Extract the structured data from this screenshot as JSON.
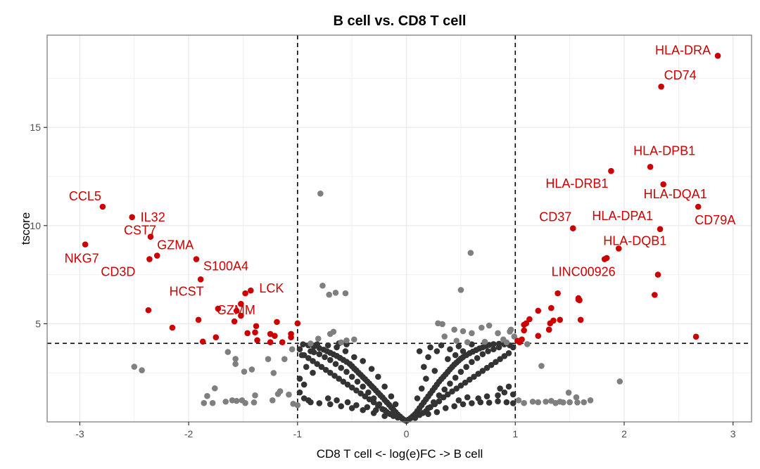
{
  "chart_data": {
    "type": "scatter",
    "title": "B cell vs. CD8 T cell",
    "xlabel": "CD8 T cell <- log(e)FC -> B cell",
    "ylabel": "tscore",
    "xlim": [
      -3.3,
      3.17
    ],
    "ylim": [
      0,
      19.7
    ],
    "x_ticks": [
      -3,
      -2,
      -1,
      0,
      1,
      2,
      3
    ],
    "x_tick_labels": [
      "-3",
      "-2",
      "-1",
      "0",
      "1",
      "2",
      "3"
    ],
    "y_ticks": [
      5,
      10,
      15
    ],
    "y_tick_labels": [
      "5",
      "10",
      "15"
    ],
    "grid": true,
    "thresholds": {
      "logFC": [
        -1,
        1
      ],
      "tscore": 4
    },
    "colors": {
      "significant": "#cc0000",
      "fc_or_t_only": "#7f7f7f",
      "not_significant": "#333333",
      "threshold_line": "#000000"
    },
    "labeled_genes": [
      {
        "gene": "HLA-DRA",
        "x": 2.86,
        "y": 18.65
      },
      {
        "gene": "CD74",
        "x": 2.34,
        "y": 17.08
      },
      {
        "gene": "HLA-DPB1",
        "x": 2.24,
        "y": 12.99
      },
      {
        "gene": "HLA-DRB1",
        "x": 1.88,
        "y": 12.78
      },
      {
        "gene": "HLA-DQA1",
        "x": 2.36,
        "y": 12.1
      },
      {
        "gene": "CD79A",
        "x": 2.68,
        "y": 10.96
      },
      {
        "gene": "CD37",
        "x": 1.53,
        "y": 9.86
      },
      {
        "gene": "HLA-DPA1",
        "x": 2.33,
        "y": 9.82
      },
      {
        "gene": "HLA-DQB1",
        "x": 1.95,
        "y": 8.83
      },
      {
        "gene": "LINC00926",
        "x": 1.82,
        "y": 8.29
      },
      {
        "gene": "CCL5",
        "x": -2.79,
        "y": 10.96
      },
      {
        "gene": "IL32",
        "x": -2.52,
        "y": 10.43
      },
      {
        "gene": "CST7",
        "x": -2.35,
        "y": 9.43
      },
      {
        "gene": "NKG7",
        "x": -2.95,
        "y": 9.04
      },
      {
        "gene": "GZMA",
        "x": -2.29,
        "y": 8.47
      },
      {
        "gene": "CD3D",
        "x": -2.36,
        "y": 8.29
      },
      {
        "gene": "S100A4",
        "x": -1.93,
        "y": 8.29
      },
      {
        "gene": "HCST",
        "x": -1.89,
        "y": 7.26
      },
      {
        "gene": "LCK",
        "x": -1.43,
        "y": 6.69
      },
      {
        "gene": "GZMM",
        "x": -1.73,
        "y": 5.77
      }
    ],
    "significant_unlabeled": [
      [
        -2.37,
        5.69
      ],
      [
        -2.15,
        4.8
      ],
      [
        -1.91,
        5.2
      ],
      [
        -1.87,
        4.09
      ],
      [
        -1.75,
        4.31
      ],
      [
        -1.48,
        6.55
      ],
      [
        -1.52,
        6.01
      ],
      [
        -1.56,
        5.66
      ],
      [
        -1.52,
        5.41
      ],
      [
        -1.58,
        5.12
      ],
      [
        -1.38,
        4.88
      ],
      [
        -1.39,
        4.56
      ],
      [
        -1.46,
        4.52
      ],
      [
        -1.19,
        5.09
      ],
      [
        -1.25,
        4.48
      ],
      [
        -1.21,
        4.38
      ],
      [
        -1.37,
        4.16
      ],
      [
        -1.25,
        4.06
      ],
      [
        -1.14,
        4.06
      ],
      [
        -1.06,
        4.31
      ],
      [
        -1.06,
        4.48
      ],
      [
        -1.0,
        5.02
      ],
      [
        2.31,
        7.5
      ],
      [
        2.28,
        6.47
      ],
      [
        2.66,
        4.34
      ],
      [
        1.84,
        8.35
      ],
      [
        1.39,
        6.55
      ],
      [
        1.58,
        6.3
      ],
      [
        1.59,
        6.2
      ],
      [
        1.58,
        6.23
      ],
      [
        1.21,
        5.66
      ],
      [
        1.33,
        5.8
      ],
      [
        1.41,
        5.2
      ],
      [
        1.13,
        5.23
      ],
      [
        1.32,
        5.02
      ],
      [
        1.35,
        5.16
      ],
      [
        1.08,
        4.95
      ],
      [
        1.1,
        5.02
      ],
      [
        1.31,
        4.7
      ],
      [
        1.08,
        4.66
      ],
      [
        1.21,
        4.38
      ],
      [
        1.06,
        4.2
      ],
      [
        1.04,
        4.06
      ],
      [
        1.02,
        4.13
      ],
      [
        1.6,
        5.2
      ],
      [
        1.31,
        4.7
      ]
    ],
    "fc_or_t_only": [
      [
        -0.79,
        11.63
      ],
      [
        0.59,
        8.61
      ],
      [
        0.5,
        6.72
      ],
      [
        -0.77,
        6.94
      ],
      [
        -0.71,
        6.48
      ],
      [
        -0.65,
        6.58
      ],
      [
        -0.56,
        6.55
      ],
      [
        -2.5,
        2.81
      ],
      [
        -2.43,
        2.63
      ],
      [
        -1.64,
        3.56
      ],
      [
        -1.57,
        3.21
      ],
      [
        -1.57,
        2.95
      ],
      [
        -1.49,
        2.56
      ],
      [
        -1.42,
        2.67
      ],
      [
        -1.76,
        1.71
      ],
      [
        -1.83,
        1.32
      ],
      [
        -1.86,
        0.96
      ],
      [
        -1.78,
        0.96
      ],
      [
        -1.66,
        1.03
      ],
      [
        -1.6,
        1.1
      ],
      [
        -1.56,
        1.07
      ],
      [
        -1.51,
        1.1
      ],
      [
        -1.48,
        0.96
      ],
      [
        -1.4,
        0.99
      ],
      [
        -1.39,
        1.35
      ],
      [
        -1.23,
        1.1
      ],
      [
        -1.18,
        1.42
      ],
      [
        -1.16,
        1.56
      ],
      [
        -1.08,
        1.39
      ],
      [
        -1.04,
        0.92
      ],
      [
        -1.0,
        0.85
      ],
      [
        -1.22,
        2.49
      ],
      [
        -1.27,
        3.2
      ],
      [
        -1.12,
        3.2
      ],
      [
        -1.05,
        3.7
      ],
      [
        -0.88,
        3.99
      ],
      [
        -0.81,
        4.24
      ],
      [
        -0.7,
        4.48
      ],
      [
        -0.67,
        4.59
      ],
      [
        -0.55,
        4.15
      ],
      [
        -0.48,
        4.2
      ],
      [
        -0.6,
        4.05
      ],
      [
        0.29,
        5.02
      ],
      [
        0.33,
        4.98
      ],
      [
        0.44,
        4.7
      ],
      [
        0.52,
        4.62
      ],
      [
        0.6,
        4.52
      ],
      [
        0.69,
        4.8
      ],
      [
        0.76,
        4.91
      ],
      [
        0.84,
        4.52
      ],
      [
        0.96,
        4.7
      ],
      [
        0.89,
        4.2
      ],
      [
        0.99,
        4.35
      ],
      [
        0.35,
        4.35
      ],
      [
        0.46,
        4.13
      ],
      [
        0.56,
        4.06
      ],
      [
        0.72,
        4.08
      ],
      [
        0.92,
        4.05
      ],
      [
        0.95,
        4.6
      ],
      [
        1.11,
        3.96
      ],
      [
        1.24,
        2.85
      ],
      [
        1.96,
        2.06
      ],
      [
        1.49,
        1.49
      ],
      [
        1.08,
        0.96
      ],
      [
        1.21,
        1.0
      ],
      [
        1.28,
        1.03
      ],
      [
        1.37,
        0.96
      ],
      [
        1.44,
        0.99
      ],
      [
        1.56,
        1.25
      ],
      [
        1.57,
        0.99
      ],
      [
        1.63,
        1.0
      ],
      [
        1.03,
        1.1
      ],
      [
        1.16,
        1.03
      ],
      [
        1.33,
        1.07
      ],
      [
        1.41,
        1.03
      ],
      [
        1.5,
        1.0
      ],
      [
        1.69,
        1.1
      ]
    ],
    "not_significant": [
      [
        0.0,
        0.05
      ],
      [
        0.02,
        0.12
      ],
      [
        -0.02,
        0.1
      ],
      [
        0.04,
        0.2
      ],
      [
        -0.04,
        0.18
      ],
      [
        0.06,
        0.3
      ],
      [
        -0.06,
        0.28
      ],
      [
        0.08,
        0.4
      ],
      [
        -0.08,
        0.38
      ],
      [
        0.1,
        0.55
      ],
      [
        -0.1,
        0.5
      ],
      [
        0.12,
        0.7
      ],
      [
        -0.12,
        0.62
      ],
      [
        0.14,
        0.85
      ],
      [
        -0.14,
        0.75
      ],
      [
        0.16,
        1.0
      ],
      [
        -0.16,
        0.88
      ],
      [
        0.18,
        1.15
      ],
      [
        -0.18,
        1.0
      ],
      [
        0.2,
        1.3
      ],
      [
        -0.2,
        1.12
      ],
      [
        0.22,
        1.45
      ],
      [
        -0.22,
        1.25
      ],
      [
        0.24,
        1.6
      ],
      [
        -0.24,
        1.36
      ],
      [
        0.26,
        1.75
      ],
      [
        -0.26,
        1.48
      ],
      [
        0.28,
        1.9
      ],
      [
        -0.28,
        1.6
      ],
      [
        0.3,
        2.05
      ],
      [
        -0.3,
        1.72
      ],
      [
        0.32,
        2.18
      ],
      [
        -0.32,
        1.83
      ],
      [
        0.34,
        2.3
      ],
      [
        -0.34,
        1.95
      ],
      [
        0.36,
        2.42
      ],
      [
        -0.36,
        2.06
      ],
      [
        0.38,
        2.55
      ],
      [
        -0.38,
        2.18
      ],
      [
        0.4,
        2.68
      ],
      [
        -0.4,
        2.28
      ],
      [
        0.42,
        2.8
      ],
      [
        -0.42,
        2.4
      ],
      [
        0.44,
        2.92
      ],
      [
        -0.44,
        2.5
      ],
      [
        0.46,
        3.02
      ],
      [
        -0.46,
        2.62
      ],
      [
        0.48,
        3.12
      ],
      [
        -0.48,
        2.72
      ],
      [
        0.5,
        3.22
      ],
      [
        -0.5,
        2.84
      ],
      [
        0.52,
        3.3
      ],
      [
        -0.52,
        2.95
      ],
      [
        0.55,
        3.4
      ],
      [
        -0.55,
        3.06
      ],
      [
        0.58,
        3.5
      ],
      [
        -0.58,
        3.16
      ],
      [
        0.61,
        3.58
      ],
      [
        -0.61,
        3.26
      ],
      [
        0.64,
        3.66
      ],
      [
        -0.64,
        3.36
      ],
      [
        0.67,
        3.74
      ],
      [
        -0.67,
        3.44
      ],
      [
        0.7,
        3.8
      ],
      [
        -0.7,
        3.52
      ],
      [
        0.73,
        3.86
      ],
      [
        -0.73,
        3.6
      ],
      [
        0.76,
        3.92
      ],
      [
        -0.76,
        3.68
      ],
      [
        0.8,
        3.96
      ],
      [
        -0.8,
        3.76
      ],
      [
        0.85,
        3.98
      ],
      [
        -0.85,
        3.84
      ],
      [
        0.9,
        3.95
      ],
      [
        -0.9,
        3.9
      ],
      [
        0.95,
        3.9
      ],
      [
        -0.95,
        3.95
      ],
      [
        0.98,
        3.8
      ],
      [
        -0.98,
        3.7
      ],
      [
        0.08,
        0.2
      ],
      [
        -0.08,
        0.22
      ],
      [
        0.12,
        0.35
      ],
      [
        -0.12,
        0.3
      ],
      [
        0.18,
        0.55
      ],
      [
        -0.18,
        0.5
      ],
      [
        0.22,
        0.75
      ],
      [
        -0.22,
        0.65
      ],
      [
        0.26,
        0.9
      ],
      [
        -0.26,
        0.82
      ],
      [
        0.3,
        1.05
      ],
      [
        -0.3,
        1.0
      ],
      [
        0.34,
        1.25
      ],
      [
        -0.34,
        1.15
      ],
      [
        0.38,
        1.4
      ],
      [
        -0.38,
        1.3
      ],
      [
        0.42,
        1.55
      ],
      [
        -0.42,
        1.45
      ],
      [
        0.46,
        1.7
      ],
      [
        -0.46,
        1.6
      ],
      [
        0.5,
        1.85
      ],
      [
        -0.5,
        1.75
      ],
      [
        0.54,
        2.0
      ],
      [
        -0.54,
        1.9
      ],
      [
        0.58,
        2.15
      ],
      [
        -0.58,
        2.05
      ],
      [
        0.62,
        2.3
      ],
      [
        -0.62,
        2.2
      ],
      [
        0.66,
        2.45
      ],
      [
        -0.66,
        2.35
      ],
      [
        0.7,
        2.6
      ],
      [
        -0.7,
        2.5
      ],
      [
        0.74,
        2.75
      ],
      [
        -0.74,
        2.65
      ],
      [
        0.78,
        2.9
      ],
      [
        -0.78,
        2.8
      ],
      [
        0.82,
        3.05
      ],
      [
        -0.82,
        2.95
      ],
      [
        0.86,
        3.2
      ],
      [
        -0.86,
        3.1
      ],
      [
        0.9,
        3.35
      ],
      [
        -0.9,
        3.25
      ],
      [
        0.94,
        3.5
      ],
      [
        -0.94,
        3.4
      ],
      [
        0.15,
        0.45
      ],
      [
        -0.15,
        0.4
      ],
      [
        0.2,
        0.7
      ],
      [
        -0.2,
        0.6
      ],
      [
        0.25,
        1.0
      ],
      [
        -0.25,
        0.9
      ],
      [
        0.3,
        1.35
      ],
      [
        -0.3,
        1.2
      ],
      [
        0.35,
        1.65
      ],
      [
        -0.35,
        1.5
      ],
      [
        0.4,
        1.95
      ],
      [
        -0.4,
        1.8
      ],
      [
        0.45,
        2.25
      ],
      [
        -0.45,
        2.05
      ],
      [
        0.5,
        2.55
      ],
      [
        -0.5,
        2.3
      ],
      [
        0.55,
        2.8
      ],
      [
        -0.55,
        2.55
      ],
      [
        0.6,
        3.05
      ],
      [
        -0.6,
        2.75
      ],
      [
        0.65,
        3.25
      ],
      [
        -0.65,
        2.95
      ],
      [
        0.7,
        3.45
      ],
      [
        -0.7,
        3.15
      ],
      [
        0.75,
        3.6
      ],
      [
        -0.75,
        3.3
      ],
      [
        0.8,
        3.7
      ],
      [
        -0.8,
        3.45
      ],
      [
        0.85,
        3.8
      ],
      [
        -0.85,
        3.55
      ],
      [
        0.1,
        1.2
      ],
      [
        0.14,
        1.7
      ],
      [
        0.18,
        2.2
      ],
      [
        0.16,
        2.8
      ],
      [
        0.2,
        3.3
      ],
      [
        0.12,
        3.6
      ],
      [
        0.22,
        3.8
      ],
      [
        0.28,
        3.6
      ],
      [
        0.32,
        3.9
      ],
      [
        0.4,
        3.7
      ],
      [
        0.48,
        3.85
      ],
      [
        0.52,
        3.6
      ],
      [
        0.6,
        3.95
      ],
      [
        0.45,
        3.4
      ],
      [
        0.38,
        3.2
      ],
      [
        0.26,
        2.6
      ],
      [
        -0.1,
        0.9
      ],
      [
        -0.14,
        1.3
      ],
      [
        -0.2,
        1.8
      ],
      [
        -0.26,
        2.3
      ],
      [
        -0.32,
        2.7
      ],
      [
        -0.4,
        3.1
      ],
      [
        -0.48,
        3.3
      ],
      [
        -0.56,
        3.6
      ],
      [
        -0.64,
        3.8
      ],
      [
        -0.72,
        3.9
      ],
      [
        -0.82,
        3.95
      ],
      [
        -0.88,
        3.6
      ],
      [
        -0.96,
        3.4
      ],
      [
        -0.92,
        2.8
      ],
      [
        -0.86,
        2.5
      ],
      [
        -0.98,
        2.2
      ],
      [
        -0.94,
        1.9
      ],
      [
        -0.98,
        1.5
      ],
      [
        -0.62,
        4.0
      ],
      [
        -0.55,
        3.95
      ],
      [
        -0.9,
        1.1
      ],
      [
        0.2,
        0.4
      ],
      [
        0.28,
        0.5
      ],
      [
        0.36,
        0.7
      ],
      [
        0.44,
        0.8
      ],
      [
        0.52,
        0.9
      ],
      [
        0.6,
        0.95
      ],
      [
        0.68,
        1.0
      ],
      [
        0.76,
        0.98
      ],
      [
        0.84,
        1.05
      ],
      [
        0.92,
        1.0
      ],
      [
        0.98,
        0.95
      ],
      [
        0.66,
        1.2
      ],
      [
        0.74,
        1.3
      ],
      [
        0.9,
        1.5
      ],
      [
        0.98,
        1.4
      ],
      [
        0.84,
        1.35
      ],
      [
        0.56,
        1.25
      ],
      [
        0.48,
        1.1
      ],
      [
        0.94,
        1.8
      ],
      [
        0.86,
        1.7
      ],
      [
        -0.2,
        0.3
      ],
      [
        -0.3,
        0.45
      ],
      [
        -0.4,
        0.6
      ],
      [
        -0.5,
        0.7
      ],
      [
        -0.6,
        0.8
      ],
      [
        -0.7,
        0.9
      ],
      [
        -0.8,
        0.95
      ],
      [
        -0.88,
        1.0
      ],
      [
        -0.94,
        1.2
      ],
      [
        -0.72,
        1.2
      ],
      [
        -0.64,
        1.1
      ],
      [
        -0.54,
        1.0
      ],
      [
        -0.46,
        0.85
      ],
      [
        -0.36,
        0.75
      ],
      [
        -0.28,
        0.6
      ]
    ]
  }
}
